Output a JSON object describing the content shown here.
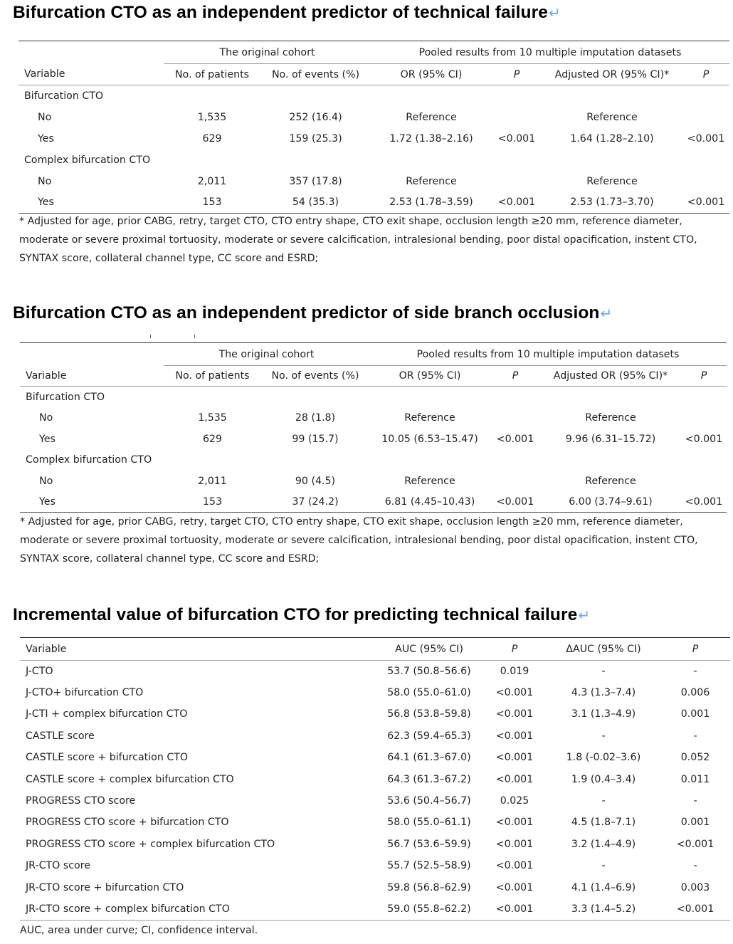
{
  "return_mark": "↵",
  "table1": {
    "title": "Bifurcation CTO as an independent predictor of technical failure",
    "group_headers": [
      "The original cohort",
      "Pooled results from 10 multiple imputation datasets"
    ],
    "columns": [
      "Variable",
      "No. of patients",
      "No. of events (%)",
      "OR (95% CI)",
      "P",
      "Adjusted OR (95% CI)*",
      "P"
    ],
    "rows": [
      {
        "type": "group",
        "variable": "Bifurcation CTO"
      },
      {
        "type": "sub",
        "variable": "No",
        "patients": "1,535",
        "events": "252 (16.4)",
        "or": "Reference",
        "p": "",
        "adj_or": "Reference",
        "adj_p": ""
      },
      {
        "type": "sub",
        "variable": "Yes",
        "patients": "629",
        "events": "159 (25.3)",
        "or": "1.72 (1.38–2.16)",
        "p": "<0.001",
        "adj_or": "1.64 (1.28–2.10)",
        "adj_p": "<0.001"
      },
      {
        "type": "group",
        "variable": "Complex bifurcation CTO"
      },
      {
        "type": "sub",
        "variable": "No",
        "patients": "2,011",
        "events": "357 (17.8)",
        "or": "Reference",
        "p": "",
        "adj_or": "Reference",
        "adj_p": ""
      },
      {
        "type": "sub",
        "variable": "Yes",
        "patients": "153",
        "events": "54 (35.3)",
        "or": "2.53 (1.78–3.59)",
        "p": "<0.001",
        "adj_or": "2.53 (1.73–3.70)",
        "adj_p": "<0.001"
      }
    ],
    "footnote": "* Adjusted for age, prior CABG, retry, target CTO, CTO entry shape, CTO exit shape, occlusion length ≥20 mm, reference diameter, moderate or severe proximal tortuosity, moderate or severe calcification, intralesional bending, poor distal opacification, instent CTO, SYNTAX score, collateral channel type, CC score and ESRD;"
  },
  "table2": {
    "title": "Bifurcation CTO as an independent predictor of side branch occlusion",
    "group_headers": [
      "The original cohort",
      "Pooled results from 10 multiple imputation datasets"
    ],
    "columns": [
      "Variable",
      "No. of patients",
      "No. of events (%)",
      "OR (95% CI)",
      "P",
      "Adjusted OR (95% CI)*",
      "P"
    ],
    "rows": [
      {
        "type": "group",
        "variable": "Bifurcation CTO"
      },
      {
        "type": "sub",
        "variable": "No",
        "patients": "1,535",
        "events": "28 (1.8)",
        "or": "Reference",
        "p": "",
        "adj_or": "Reference",
        "adj_p": ""
      },
      {
        "type": "sub",
        "variable": "Yes",
        "patients": "629",
        "events": "99 (15.7)",
        "or": "10.05 (6.53–15.47)",
        "p": "<0.001",
        "adj_or": "9.96 (6.31–15.72)",
        "adj_p": "<0.001"
      },
      {
        "type": "group",
        "variable": "Complex bifurcation CTO"
      },
      {
        "type": "sub",
        "variable": "No",
        "patients": "2,011",
        "events": "90 (4.5)",
        "or": "Reference",
        "p": "",
        "adj_or": "Reference",
        "adj_p": ""
      },
      {
        "type": "sub",
        "variable": "Yes",
        "patients": "153",
        "events": "37 (24.2)",
        "or": "6.81 (4.45–10.43)",
        "p": "<0.001",
        "adj_or": "6.00 (3.74–9.61)",
        "adj_p": "<0.001"
      }
    ],
    "footnote": "* Adjusted for age, prior CABG, retry, target CTO, CTO entry shape, CTO exit shape, occlusion length ≥20 mm, reference diameter, moderate or severe proximal tortuosity, moderate or severe calcification, intralesional bending, poor distal opacification, instent CTO, SYNTAX score, collateral channel type, CC score and ESRD;"
  },
  "table3": {
    "title": "Incremental value of bifurcation CTO for predicting technical failure",
    "columns": [
      "Variable",
      "AUC (95% CI)",
      "P",
      "ΔAUC (95% CI)",
      "P"
    ],
    "rows": [
      {
        "variable": "J-CTO",
        "auc": "53.7 (50.8–56.6)",
        "p": "0.019",
        "dauc": "-",
        "dp": "-"
      },
      {
        "variable": "J-CTO+ bifurcation CTO",
        "auc": "58.0 (55.0–61.0)",
        "p": "<0.001",
        "dauc": "4.3 (1.3–7.4)",
        "dp": "0.006"
      },
      {
        "variable": "J-CTI + complex bifurcation CTO",
        "auc": "56.8 (53.8–59.8)",
        "p": "<0.001",
        "dauc": "3.1 (1.3–4.9)",
        "dp": "0.001"
      },
      {
        "variable": "CASTLE score",
        "auc": "62.3 (59.4–65.3)",
        "p": "<0.001",
        "dauc": "-",
        "dp": "-"
      },
      {
        "variable": "CASTLE score + bifurcation CTO",
        "auc": "64.1 (61.3–67.0)",
        "p": "<0.001",
        "dauc": "1.8 (-0.02–3.6)",
        "dp": "0.052"
      },
      {
        "variable": "CASTLE score + complex bifurcation CTO",
        "auc": "64.3 (61.3–67.2)",
        "p": "<0.001",
        "dauc": "1.9 (0.4–3.4)",
        "dp": "0.011"
      },
      {
        "variable": "PROGRESS CTO score",
        "auc": "53.6 (50.4–56.7)",
        "p": "0.025",
        "dauc": "-",
        "dp": "-"
      },
      {
        "variable": "PROGRESS CTO score + bifurcation CTO",
        "auc": "58.0 (55.0–61.1)",
        "p": "<0.001",
        "dauc": "4.5 (1.8–7.1)",
        "dp": "0.001"
      },
      {
        "variable": "PROGRESS CTO score + complex bifurcation CTO",
        "auc": "56.7 (53.6–59.9)",
        "p": "<0.001",
        "dauc": "3.2 (1.4–4.9)",
        "dp": "<0.001"
      },
      {
        "variable": "JR-CTO score",
        "auc": "55.7 (52.5–58.9)",
        "p": "<0.001",
        "dauc": "-",
        "dp": "-"
      },
      {
        "variable": "JR-CTO score + bifurcation CTO",
        "auc": "59.8 (56.8–62.9)",
        "p": "<0.001",
        "dauc": "4.1 (1.4–6.9)",
        "dp": "0.003"
      },
      {
        "variable": "JR-CTO score + complex bifurcation CTO",
        "auc": "59.0 (55.8–62.2)",
        "p": "<0.001",
        "dauc": "3.3 (1.4–5.2)",
        "dp": "<0.001"
      }
    ],
    "footnote": "AUC, area under curve; CI, confidence interval."
  }
}
